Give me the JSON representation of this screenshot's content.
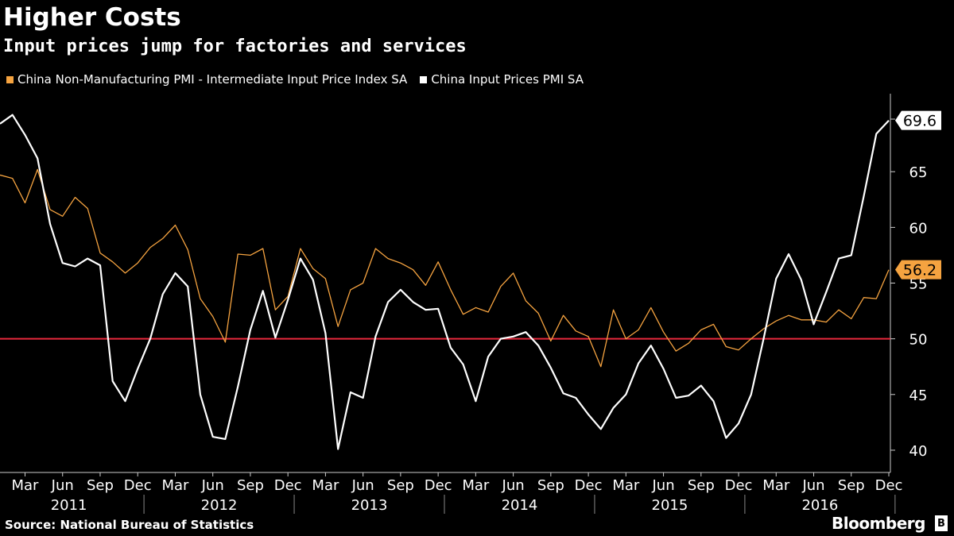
{
  "colors": {
    "background": "#000000",
    "series_white": "#ffffff",
    "series_orange": "#f5a340",
    "reference_line": "#e8283c",
    "axis": "#cccccc",
    "text": "#ffffff"
  },
  "header": {
    "title": "Higher Costs",
    "subtitle": "Input prices jump for factories and services"
  },
  "legend": [
    {
      "label": "China Non-Manufacturing PMI - Intermediate Input Price Index SA",
      "color": "#f5a340"
    },
    {
      "label": "China Input Prices PMI SA",
      "color": "#ffffff"
    }
  ],
  "footer": {
    "source": "Source: National Bureau of Statistics",
    "brand": "Bloomberg",
    "brand_icon": "bloomberg-b-icon"
  },
  "chart_data": {
    "type": "line",
    "title": "Higher Costs",
    "subtitle": "Input prices jump for factories and services",
    "xlabel": "",
    "ylabel": "",
    "ylim": [
      38,
      72
    ],
    "y_ticks": [
      40,
      45,
      50,
      55,
      60,
      65
    ],
    "x_start": "2011-01",
    "x_end": "2016-12",
    "x_tick_months": [
      "Mar",
      "Jun",
      "Sep",
      "Dec"
    ],
    "x_year_labels": [
      "2011",
      "2012",
      "2013",
      "2014",
      "2015",
      "2016"
    ],
    "reference_line": 50,
    "grid": false,
    "legend_position": "top-left",
    "end_labels": [
      {
        "series": "China Input Prices PMI SA",
        "text": "69.6"
      },
      {
        "series": "China Non-Manufacturing PMI - Intermediate Input Price Index SA",
        "text": "56.2"
      }
    ],
    "series": [
      {
        "name": "China Non-Manufacturing PMI - Intermediate Input Price Index SA",
        "color": "#f5a340",
        "values": [
          64.7,
          64.4,
          62.2,
          65.2,
          61.6,
          61.0,
          62.7,
          61.7,
          57.7,
          56.9,
          55.9,
          56.8,
          58.2,
          59.0,
          60.2,
          58.0,
          53.6,
          52.0,
          49.7,
          57.6,
          57.5,
          58.1,
          52.6,
          53.8,
          58.1,
          56.3,
          55.4,
          51.1,
          54.4,
          55.0,
          58.1,
          57.2,
          56.8,
          56.2,
          54.8,
          56.9,
          54.4,
          52.2,
          52.8,
          52.4,
          54.7,
          55.9,
          53.4,
          52.3,
          49.8,
          52.1,
          50.7,
          50.2,
          47.5,
          52.6,
          50.0,
          50.8,
          52.8,
          50.6,
          48.9,
          49.6,
          50.8,
          51.3,
          49.3,
          49.0,
          50.0,
          50.9,
          51.6,
          52.1,
          51.7,
          51.7,
          51.5,
          52.6,
          51.8,
          53.7,
          53.6,
          56.2
        ]
      },
      {
        "name": "China Input Prices PMI SA",
        "color": "#ffffff",
        "values": [
          69.3,
          70.1,
          68.3,
          66.2,
          60.3,
          56.8,
          56.5,
          57.2,
          56.6,
          46.2,
          44.4,
          47.3,
          50.0,
          54.0,
          55.9,
          54.7,
          45.0,
          41.2,
          41.0,
          45.7,
          50.8,
          54.3,
          50.1,
          53.5,
          57.2,
          55.3,
          50.5,
          40.1,
          45.2,
          44.7,
          50.2,
          53.3,
          54.4,
          53.3,
          52.6,
          52.7,
          49.2,
          47.7,
          44.4,
          48.4,
          50.0,
          50.2,
          50.6,
          49.4,
          47.4,
          45.1,
          44.7,
          43.2,
          41.9,
          43.8,
          45.0,
          47.8,
          49.4,
          47.3,
          44.7,
          44.9,
          45.8,
          44.4,
          41.1,
          42.4,
          45.0,
          50.0,
          55.4,
          57.6,
          55.3,
          51.3,
          54.2,
          57.2,
          57.5,
          62.8,
          68.4,
          69.6
        ]
      }
    ]
  }
}
